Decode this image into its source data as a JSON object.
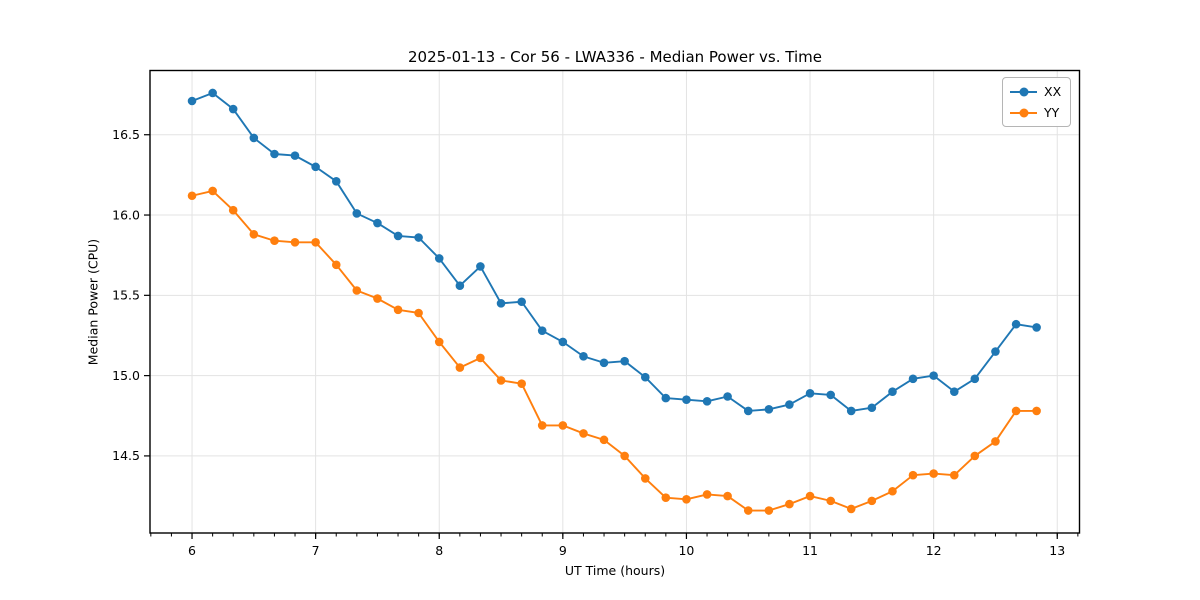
{
  "figure": {
    "background": "#ffffff",
    "frame_color": "#000000"
  },
  "chart_data": {
    "type": "line",
    "title": "2025-01-13 - Cor 56 - LWA336 - Median Power vs. Time",
    "xlabel": "UT Time (hours)",
    "ylabel": "Median Power (CPU)",
    "xlim": [
      5.66,
      13.18
    ],
    "ylim": [
      14.02,
      16.9
    ],
    "xticks": [
      6,
      7,
      8,
      9,
      10,
      11,
      12,
      13
    ],
    "yticks": [
      14.5,
      15.0,
      15.5,
      16.0,
      16.5
    ],
    "x_minor_tick_step": 0.166667,
    "grid": true,
    "grid_color": "#e3e3e3",
    "legend_position": "upper right",
    "x": [
      6.0,
      6.167,
      6.333,
      6.5,
      6.667,
      6.833,
      7.0,
      7.167,
      7.333,
      7.5,
      7.667,
      7.833,
      8.0,
      8.167,
      8.333,
      8.5,
      8.667,
      8.833,
      9.0,
      9.167,
      9.333,
      9.5,
      9.667,
      9.833,
      10.0,
      10.167,
      10.333,
      10.5,
      10.667,
      10.833,
      11.0,
      11.167,
      11.333,
      11.5,
      11.667,
      11.833,
      12.0,
      12.167,
      12.333,
      12.5,
      12.667,
      12.833
    ],
    "series": [
      {
        "name": "XX",
        "color": "#1f77b4",
        "values": [
          16.71,
          16.76,
          16.66,
          16.48,
          16.38,
          16.37,
          16.3,
          16.21,
          16.01,
          15.95,
          15.87,
          15.86,
          15.73,
          15.56,
          15.68,
          15.45,
          15.46,
          15.28,
          15.21,
          15.12,
          15.08,
          15.09,
          14.99,
          14.86,
          14.85,
          14.84,
          14.87,
          14.78,
          14.79,
          14.82,
          14.89,
          14.88,
          14.78,
          14.8,
          14.9,
          14.98,
          15.0,
          14.9,
          14.98,
          15.15,
          15.32,
          15.3
        ]
      },
      {
        "name": "YY",
        "color": "#ff7f0e",
        "values": [
          16.12,
          16.15,
          16.03,
          15.88,
          15.84,
          15.83,
          15.83,
          15.69,
          15.53,
          15.48,
          15.41,
          15.39,
          15.21,
          15.05,
          15.11,
          14.97,
          14.95,
          14.69,
          14.69,
          14.64,
          14.6,
          14.5,
          14.36,
          14.24,
          14.23,
          14.26,
          14.25,
          14.16,
          14.16,
          14.2,
          14.25,
          14.22,
          14.17,
          14.22,
          14.28,
          14.38,
          14.39,
          14.38,
          14.5,
          14.59,
          14.78,
          14.78
        ]
      }
    ]
  }
}
